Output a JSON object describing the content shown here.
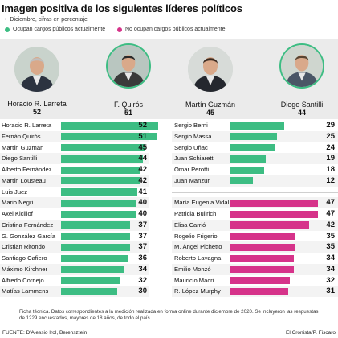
{
  "header": {
    "title": "Imagen positiva de los siguientes líderes políticos",
    "subtitle": "Diciembre, cifras en porcentaje",
    "subtitle_bullet": "•"
  },
  "legend": {
    "green_label": "Ocupan cargos públicos actualmente",
    "pink_label": "No ocupan cargos públicos actualmente"
  },
  "colors": {
    "green": "#3dbd83",
    "pink": "#d6338a",
    "shade": "#ebebeb"
  },
  "leaders": [
    {
      "name": "Horacio R. Larreta",
      "value": "52",
      "icon": "person-portrait-icon"
    },
    {
      "name": "F. Quirós",
      "value": "51",
      "icon": "person-portrait-icon"
    },
    {
      "name": "Martín Guzmán",
      "value": "45",
      "icon": "person-portrait-icon"
    },
    {
      "name": "Diego Santilli",
      "value": "44",
      "icon": "person-portrait-icon"
    }
  ],
  "chart_data": {
    "type": "bar",
    "title": "Imagen positiva de los siguientes líderes políticos",
    "subtitle": "Diciembre, cifras en porcentaje",
    "xlim": [
      0,
      55
    ],
    "series_left": {
      "name": "Ocupan cargos públicos actualmente",
      "color": "#3dbd83",
      "items": [
        {
          "label": "Horacio R. Larreta",
          "value": 52
        },
        {
          "label": "Fernán Quirós",
          "value": 51
        },
        {
          "label": "Martín Guzmán",
          "value": 45
        },
        {
          "label": "Diego Santilli",
          "value": 44
        },
        {
          "label": "Alberto Fernández",
          "value": 42
        },
        {
          "label": "Martín Lousteau",
          "value": 42
        },
        {
          "label": "Luis Juez",
          "value": 41
        },
        {
          "label": "Mario Negri",
          "value": 40
        },
        {
          "label": "Axel Kicillof",
          "value": 40
        },
        {
          "label": "Cristina Fernández",
          "value": 37
        },
        {
          "label": "G. González García",
          "value": 37
        },
        {
          "label": "Cristian Ritondo",
          "value": 37
        },
        {
          "label": "Santiago Cafiero",
          "value": 36
        },
        {
          "label": "Máximo Kirchner",
          "value": 34
        },
        {
          "label": "Alfredo Cornejo",
          "value": 32
        },
        {
          "label": "Matías Lammens",
          "value": 30
        }
      ]
    },
    "series_right_green": {
      "name": "Ocupan cargos públicos actualmente",
      "color": "#3dbd83",
      "items": [
        {
          "label": "Sergio Berni",
          "value": 29
        },
        {
          "label": "Sergio Massa",
          "value": 25
        },
        {
          "label": "Sergio Uñac",
          "value": 24
        },
        {
          "label": "Juan Schiaretti",
          "value": 19
        },
        {
          "label": "Omar Perotti",
          "value": 18
        },
        {
          "label": "Juan Manzur",
          "value": 12
        }
      ]
    },
    "series_right_pink": {
      "name": "No ocupan cargos públicos actualmente",
      "color": "#d6338a",
      "items": [
        {
          "label": "María Eugenia Vidal",
          "value": 47
        },
        {
          "label": "Patricia Bullrich",
          "value": 47
        },
        {
          "label": "Elisa Carrió",
          "value": 42
        },
        {
          "label": "Rogelio Frigerio",
          "value": 35
        },
        {
          "label": "M. Ángel Pichetto",
          "value": 35
        },
        {
          "label": "Roberto Lavagna",
          "value": 34
        },
        {
          "label": "Emilio Monzó",
          "value": 34
        },
        {
          "label": "Mauricio Macri",
          "value": 32
        },
        {
          "label": "R. López Murphy",
          "value": 31
        }
      ]
    }
  },
  "note": "Ficha técnica. Datos correspondientes a la medición realizada en forma online durante diciembre de 2020. Se incluyeron las respuestas de 1229 encuestados, mayores de 18 años, de todo el país",
  "footer": {
    "source": "FUENTE: D'Alessio Irol, Berensztein",
    "credit": "El Cronista/P. Fiscaro"
  }
}
